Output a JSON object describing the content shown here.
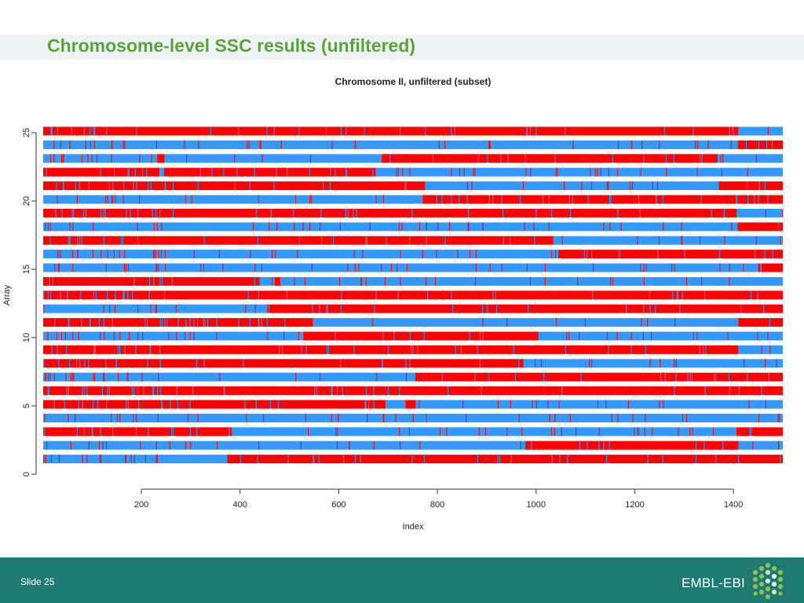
{
  "slide": {
    "title": "Chromosome-level SSC results (unfiltered)",
    "slide_number": "Slide 25",
    "brand": "EMBL-EBI",
    "colors": {
      "title": "#5aa33a",
      "footer": "#1f7a74"
    },
    "logo_icon": "embl-ebi-hexagon-logo-icon"
  },
  "chart_data": {
    "type": "heatmap",
    "title": "Chromosome II, unfiltered (subset)",
    "xlabel": "Index",
    "ylabel": "Array",
    "xlim": [
      1,
      1500
    ],
    "ylim": [
      0,
      25
    ],
    "x_ticks": [
      200,
      400,
      600,
      800,
      1000,
      1200,
      1400
    ],
    "y_ticks": [
      0,
      5,
      10,
      15,
      20,
      25
    ],
    "state_colors": {
      "A": "#ff0000",
      "B": "#3399ff"
    },
    "grid": false,
    "rows": [
      {
        "array": 1,
        "segments": [
          [
            1,
            374,
            "B"
          ],
          [
            374,
            1500,
            "A"
          ]
        ]
      },
      {
        "array": 2,
        "segments": [
          [
            1,
            978,
            "B"
          ],
          [
            978,
            1410,
            "A"
          ],
          [
            1410,
            1500,
            "B"
          ]
        ]
      },
      {
        "array": 3,
        "segments": [
          [
            1,
            384,
            "A"
          ],
          [
            384,
            1406,
            "B"
          ],
          [
            1406,
            1500,
            "A"
          ]
        ]
      },
      {
        "array": 4,
        "segments": [
          [
            1,
            1500,
            "B"
          ]
        ]
      },
      {
        "array": 5,
        "segments": [
          [
            1,
            695,
            "A"
          ],
          [
            695,
            735,
            "B"
          ],
          [
            735,
            756,
            "A"
          ],
          [
            756,
            1500,
            "B"
          ]
        ]
      },
      {
        "array": 6,
        "segments": [
          [
            1,
            1500,
            "A"
          ]
        ]
      },
      {
        "array": 7,
        "segments": [
          [
            1,
            755,
            "B"
          ],
          [
            755,
            1500,
            "A"
          ]
        ]
      },
      {
        "array": 8,
        "segments": [
          [
            1,
            975,
            "A"
          ],
          [
            975,
            1500,
            "B"
          ]
        ]
      },
      {
        "array": 9,
        "segments": [
          [
            1,
            1410,
            "A"
          ],
          [
            1410,
            1500,
            "B"
          ]
        ]
      },
      {
        "array": 10,
        "segments": [
          [
            1,
            528,
            "B"
          ],
          [
            528,
            1005,
            "A"
          ],
          [
            1005,
            1500,
            "B"
          ]
        ]
      },
      {
        "array": 11,
        "segments": [
          [
            1,
            548,
            "A"
          ],
          [
            548,
            1410,
            "B"
          ],
          [
            1410,
            1500,
            "A"
          ]
        ]
      },
      {
        "array": 12,
        "segments": [
          [
            1,
            455,
            "B"
          ],
          [
            455,
            1500,
            "A"
          ]
        ]
      },
      {
        "array": 13,
        "segments": [
          [
            1,
            1500,
            "A"
          ]
        ]
      },
      {
        "array": 14,
        "segments": [
          [
            1,
            442,
            "A"
          ],
          [
            442,
            470,
            "B"
          ],
          [
            470,
            482,
            "A"
          ],
          [
            482,
            1500,
            "B"
          ]
        ]
      },
      {
        "array": 15,
        "segments": [
          [
            1,
            1450,
            "B"
          ],
          [
            1450,
            1500,
            "A"
          ]
        ]
      },
      {
        "array": 16,
        "segments": [
          [
            1,
            1045,
            "B"
          ],
          [
            1045,
            1500,
            "A"
          ]
        ]
      },
      {
        "array": 17,
        "segments": [
          [
            1,
            1035,
            "A"
          ],
          [
            1035,
            1500,
            "B"
          ]
        ]
      },
      {
        "array": 18,
        "segments": [
          [
            1,
            1408,
            "B"
          ],
          [
            1408,
            1500,
            "A"
          ]
        ]
      },
      {
        "array": 19,
        "segments": [
          [
            1,
            1408,
            "A"
          ],
          [
            1408,
            1500,
            "B"
          ]
        ]
      },
      {
        "array": 20,
        "segments": [
          [
            1,
            770,
            "B"
          ],
          [
            770,
            1500,
            "A"
          ]
        ]
      },
      {
        "array": 21,
        "segments": [
          [
            1,
            775,
            "A"
          ],
          [
            775,
            1370,
            "B"
          ],
          [
            1370,
            1500,
            "A"
          ]
        ]
      },
      {
        "array": 22,
        "segments": [
          [
            1,
            237,
            "A"
          ],
          [
            237,
            246,
            "B"
          ],
          [
            246,
            675,
            "A"
          ],
          [
            675,
            1500,
            "B"
          ]
        ]
      },
      {
        "array": 23,
        "segments": [
          [
            1,
            232,
            "B"
          ],
          [
            232,
            247,
            "A"
          ],
          [
            247,
            687,
            "B"
          ],
          [
            687,
            1368,
            "A"
          ],
          [
            1368,
            1500,
            "B"
          ]
        ]
      },
      {
        "array": 24,
        "segments": [
          [
            1,
            1410,
            "B"
          ],
          [
            1410,
            1500,
            "A"
          ]
        ]
      },
      {
        "array": 25,
        "segments": [
          [
            1,
            1410,
            "A"
          ],
          [
            1410,
            1500,
            "B"
          ]
        ]
      }
    ]
  }
}
